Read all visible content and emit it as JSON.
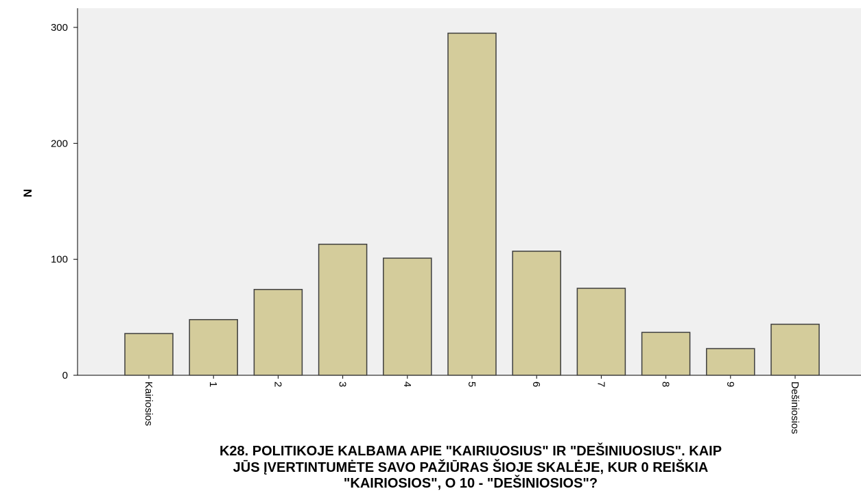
{
  "chart_data": {
    "type": "bar",
    "categories": [
      "Kairiosios",
      "1",
      "2",
      "3",
      "4",
      "5",
      "6",
      "7",
      "8",
      "9",
      "Dešiniosios"
    ],
    "values": [
      36,
      48,
      74,
      113,
      101,
      295,
      107,
      75,
      37,
      23,
      44
    ],
    "title": "",
    "xlabel": "K28. POLITIKOJE KALBAMA APIE \"KAIRIUOSIUS\" IR \"DEŠINIUOSIUS\". KAIP JŪS ĮVERTINTUMĖTE SAVO PAŽIŪRAS ŠIOJE SKALĖJE, KUR 0 REIŠKIA \"KAIRIOSIOS\", O 10 - \"DEŠINIOSIOS\"?",
    "xlabel_lines": [
      "K28. POLITIKOJE KALBAMA APIE \"KAIRIUOSIUS\" IR \"DEŠINIUOSIUS\". KAIP",
      "JŪS ĮVERTINTUMĖTE SAVO PAŽIŪRAS ŠIOJE SKALĖJE, KUR 0 REIŠKIA",
      "\"KAIRIOSIOS\", O 10 - \"DEŠINIOSIOS\"?"
    ],
    "ylabel": "N",
    "ylim": [
      0,
      300
    ],
    "yticks": [
      0,
      100,
      200,
      300
    ],
    "grid": false,
    "colors": {
      "bar_fill": "#d4cc9b",
      "bar_stroke": "#3d3d3d",
      "plot_background": "#f0f0f0",
      "axis": "#000000"
    }
  }
}
